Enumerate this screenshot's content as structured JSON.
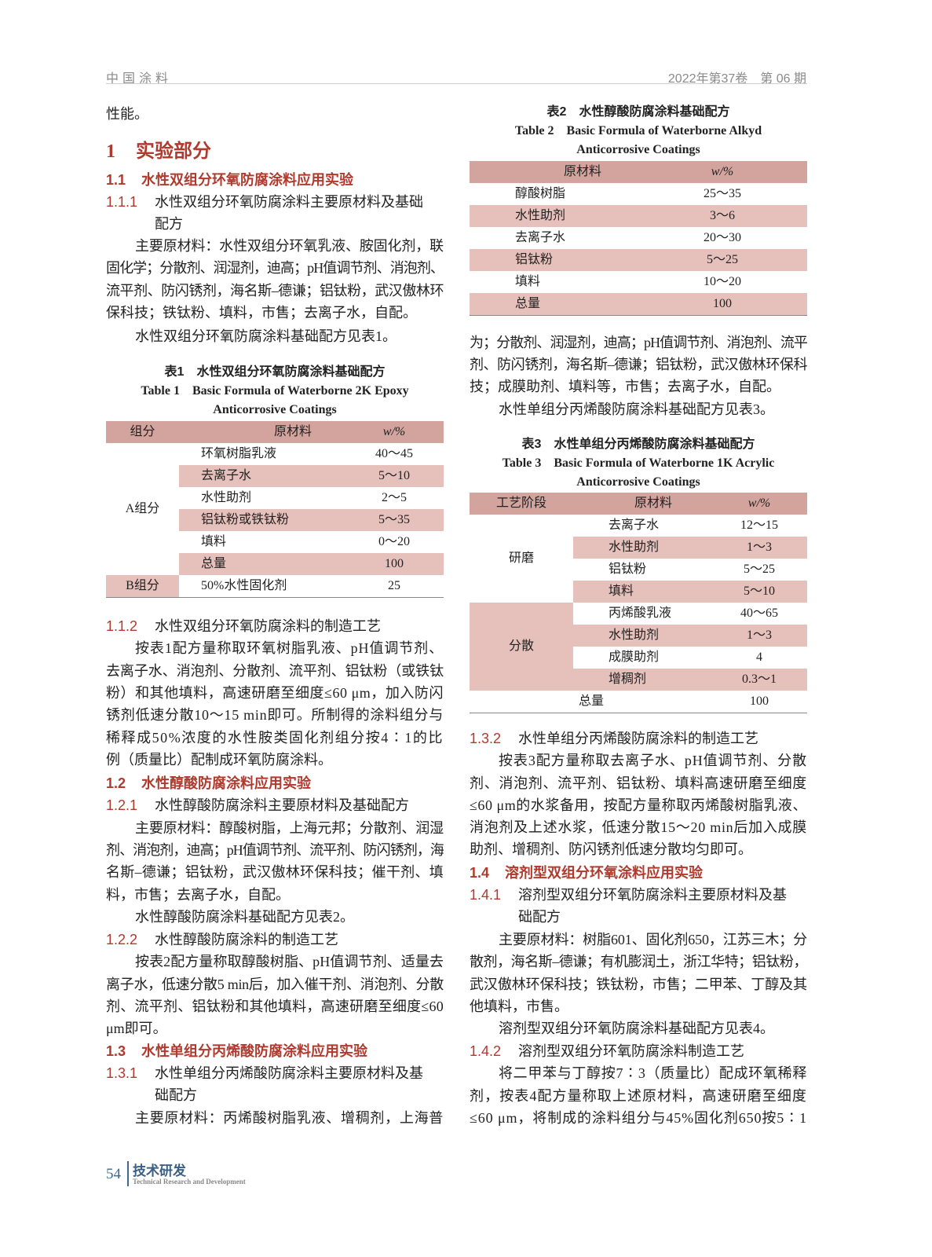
{
  "header": {
    "journal": "中国涂料",
    "issue": "2022年第37卷　第 06 期"
  },
  "footer": {
    "page": "54",
    "section_cn": "技术研发",
    "section_en": "Technical Research and Development"
  },
  "colors": {
    "heading_red": "#b03a2e",
    "table_header": "#d3a39d",
    "table_stripe": "#e6c0bb",
    "footer_blue": "#3b6a95"
  },
  "left": [
    {
      "type": "p",
      "lines": [
        "性能。"
      ]
    },
    {
      "type": "h1",
      "num": "1",
      "text": "实验部分"
    },
    {
      "type": "h2",
      "num": "1.1",
      "text": "水性双组分环氧防腐涂料应用实验"
    },
    {
      "type": "h3",
      "num": "1.1.1",
      "lines": [
        "水性双组分环氧防腐涂料主要原材料及基础",
        "配方"
      ]
    },
    {
      "type": "p",
      "lines": [
        "主要原材料：水性双组分环氧乳液、胺固化剂，联",
        "固化学；分散剂、润湿剂，迪高；pH值调节剂、消泡剂、",
        "流平剂、防闪锈剂，海名斯–德谦；铝钛粉，武汉傲林环",
        "保科技；铁钛粉、填料，市售；去离子水，自配。"
      ]
    },
    {
      "type": "p",
      "lines": [
        "水性双组分环氧防腐涂料基础配方见表1。"
      ]
    },
    {
      "type": "table",
      "caption_cn": "表1　水性双组分环氧防腐涂料基础配方",
      "caption_en": [
        "Table 1　Basic Formula of Waterborne 2K Epoxy",
        "Anticorrosive Coatings"
      ],
      "headers": [
        "组分",
        "原材料",
        "w/%"
      ],
      "groups": [
        {
          "name": "A组分",
          "rows": [
            [
              "环氧树脂乳液",
              "40～45"
            ],
            [
              "去离子水",
              "5～10"
            ],
            [
              "水性助剂",
              "2～5"
            ],
            [
              "铝钛粉或铁钛粉",
              "5～35"
            ],
            [
              "填料",
              "0～20"
            ],
            [
              "总量",
              "100"
            ]
          ]
        },
        {
          "name": "B组分",
          "rows": [
            [
              "50%水性固化剂",
              "25"
            ]
          ]
        }
      ]
    },
    {
      "type": "h3",
      "num": "1.1.2",
      "lines": [
        "水性双组分环氧防腐涂料的制造工艺"
      ]
    },
    {
      "type": "p",
      "lines": [
        "按表1配方量称取环氧树脂乳液、pH值调节剂、",
        "去离子水、消泡剂、分散剂、流平剂、铝钛粉（或铁钛",
        "粉）和其他填料，高速研磨至细度≤60 μm，加入防闪",
        "锈剂低速分散10～15 min即可。所制得的涂料组分与",
        "稀释成50%浓度的水性胺类固化剂组分按4∶1的比",
        "例（质量比）配制成环氧防腐涂料。"
      ]
    },
    {
      "type": "h2",
      "num": "1.2",
      "text": "水性醇酸防腐涂料应用实验"
    },
    {
      "type": "h3",
      "num": "1.2.1",
      "lines": [
        "水性醇酸防腐涂料主要原材料及基础配方"
      ]
    },
    {
      "type": "p",
      "lines": [
        "主要原材料：醇酸树脂，上海元邦；分散剂、润湿",
        "剂、消泡剂，迪高；pH值调节剂、流平剂、防闪锈剂，海",
        "名斯–德谦；铝钛粉，武汉傲林环保科技；催干剂、填",
        "料，市售；去离子水，自配。"
      ]
    },
    {
      "type": "p",
      "lines": [
        "水性醇酸防腐涂料基础配方见表2。"
      ]
    },
    {
      "type": "h3",
      "num": "1.2.2",
      "lines": [
        "水性醇酸防腐涂料的制造工艺"
      ]
    },
    {
      "type": "p",
      "lines": [
        "按表2配方量称取醇酸树脂、pH值调节剂、适量去",
        "离子水，低速分散5 min后，加入催干剂、消泡剂、分散",
        "剂、流平剂、铝钛粉和其他填料，高速研磨至细度≤60",
        "μm即可。"
      ]
    },
    {
      "type": "h2",
      "num": "1.3",
      "text": "水性单组分丙烯酸防腐涂料应用实验"
    },
    {
      "type": "h3",
      "num": "1.3.1",
      "lines": [
        "水性单组分丙烯酸防腐涂料主要原材料及基",
        "础配方"
      ]
    },
    {
      "type": "p",
      "lines": [
        "主要原材料：丙烯酸树脂乳液、增稠剂，上海普"
      ]
    }
  ],
  "right": [
    {
      "type": "table",
      "caption_cn": "表2　水性醇酸防腐涂料基础配方",
      "caption_en": [
        "Table 2　Basic Formula of Waterborne Alkyd",
        "Anticorrosive Coatings"
      ],
      "headers": [
        "原材料",
        "w/%"
      ],
      "rows": [
        [
          "醇酸树脂",
          "25～35"
        ],
        [
          "水性助剂",
          "3～6"
        ],
        [
          "去离子水",
          "20～30"
        ],
        [
          "铝钛粉",
          "5～25"
        ],
        [
          "填料",
          "10～20"
        ],
        [
          "总量",
          "100"
        ]
      ]
    },
    {
      "type": "p",
      "lines": [
        "为；分散剂、润湿剂，迪高；pH值调节剂、消泡剂、流平",
        "剂、防闪锈剂，海名斯–德谦；铝钛粉，武汉傲林环保科",
        "技；成膜助剂、填料等，市售；去离子水，自配。"
      ]
    },
    {
      "type": "p",
      "lines": [
        "水性单组分丙烯酸防腐涂料基础配方见表3。"
      ]
    },
    {
      "type": "table",
      "caption_cn": "表3　水性单组分丙烯酸防腐涂料基础配方",
      "caption_en": [
        "Table 3　Basic Formula of Waterborne 1K Acrylic",
        "Anticorrosive Coatings"
      ],
      "headers": [
        "工艺阶段",
        "原材料",
        "w/%"
      ],
      "groups": [
        {
          "name": "研磨",
          "rows": [
            [
              "去离子水",
              "12～15"
            ],
            [
              "水性助剂",
              "1～3"
            ],
            [
              "铝钛粉",
              "5～25"
            ],
            [
              "填料",
              "5～10"
            ]
          ]
        },
        {
          "name": "分散",
          "rows": [
            [
              "丙烯酸乳液",
              "40～65"
            ],
            [
              "水性助剂",
              "1～3"
            ],
            [
              "成膜助剂",
              "4"
            ],
            [
              "增稠剂",
              "0.3～1"
            ]
          ]
        }
      ],
      "total": [
        "总量",
        "100"
      ]
    },
    {
      "type": "h3",
      "num": "1.3.2",
      "lines": [
        "水性单组分丙烯酸防腐涂料的制造工艺"
      ]
    },
    {
      "type": "p",
      "lines": [
        "按表3配方量称取去离子水、pH值调节剂、分散",
        "剂、消泡剂、流平剂、铝钛粉、填料高速研磨至细度",
        "≤60 μm的水浆备用，按配方量称取丙烯酸树脂乳液、",
        "消泡剂及上述水浆，低速分散15～20 min后加入成膜",
        "助剂、增稠剂、防闪锈剂低速分散均匀即可。"
      ]
    },
    {
      "type": "h2",
      "num": "1.4",
      "text": "溶剂型双组分环氧涂料应用实验"
    },
    {
      "type": "h3",
      "num": "1.4.1",
      "lines": [
        "溶剂型双组分环氧防腐涂料主要原材料及基",
        "础配方"
      ]
    },
    {
      "type": "p",
      "lines": [
        "主要原材料：树脂601、固化剂650，江苏三木；分",
        "散剂，海名斯–德谦；有机膨润土，浙江华特；铝钛粉，",
        "武汉傲林环保科技；铁钛粉，市售；二甲苯、丁醇及其",
        "他填料，市售。"
      ]
    },
    {
      "type": "p",
      "lines": [
        "溶剂型双组分环氧防腐涂料基础配方见表4。"
      ]
    },
    {
      "type": "h3",
      "num": "1.4.2",
      "lines": [
        "溶剂型双组分环氧防腐涂料制造工艺"
      ]
    },
    {
      "type": "p",
      "lines": [
        "将二甲苯与丁醇按7∶3（质量比）配成环氧稀释",
        "剂，按表4配方量称取上述原材料，高速研磨至细度",
        "≤60 μm，将制成的涂料组分与45%固化剂650按5∶1"
      ]
    }
  ]
}
